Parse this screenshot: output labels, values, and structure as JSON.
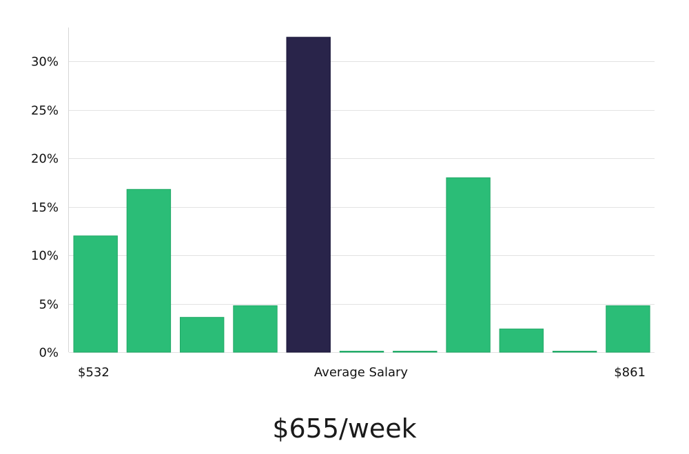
{
  "chart_data": {
    "type": "bar",
    "y_tick_labels": [
      "0%",
      "5%",
      "10%",
      "15%",
      "20%",
      "25%",
      "30%"
    ],
    "y_ticks": [
      0,
      5,
      10,
      15,
      20,
      25,
      30
    ],
    "ylim": [
      0,
      33.5
    ],
    "grid": true,
    "values": [
      12.0,
      16.8,
      3.6,
      4.8,
      32.5,
      0.08,
      0.08,
      18.0,
      2.4,
      0.08,
      4.8
    ],
    "highlight_index": 4,
    "x_labels": {
      "left": "$532",
      "center": "Average Salary",
      "right": "$861"
    },
    "colors": {
      "bar": "#2bbd77",
      "bar_edge": "#22a866",
      "highlight": "#29244a",
      "highlight_edge": "#1a1638",
      "grid": "#e2e2e2",
      "axis": "#d6d6d6"
    }
  },
  "summary": {
    "value": "$655/week"
  }
}
